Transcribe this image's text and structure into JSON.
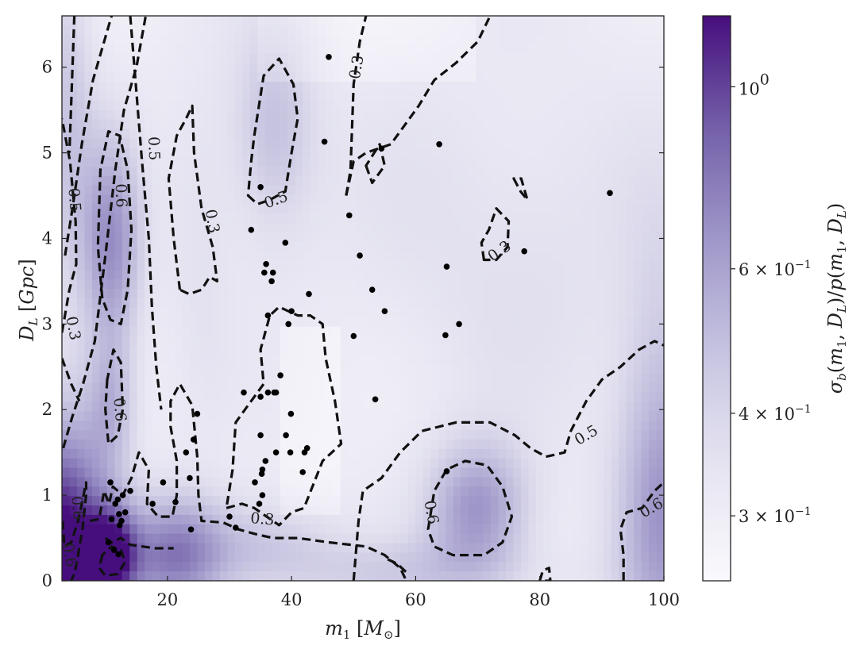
{
  "chart_data": {
    "type": "heatmap",
    "title": "",
    "xlabel": "m_1 [M_⊙]",
    "ylabel": "D_L [Gpc]",
    "colorbar_label": "σ_b(m_1, D_L)/p(m_1, D_L)",
    "xlim": [
      3,
      100
    ],
    "ylim": [
      0,
      6.6
    ],
    "xticks": [
      20,
      40,
      60,
      80,
      100
    ],
    "yticks": [
      0,
      1,
      2,
      3,
      4,
      5,
      6
    ],
    "colorbar": {
      "scale": "log",
      "range": [
        0.25,
        1.22
      ],
      "colormap": "Purples",
      "ticks": [
        {
          "value": 1.0,
          "base": "10",
          "exp": "0"
        },
        {
          "value": 0.6,
          "mant": "6 × 10",
          "exp": "−1"
        },
        {
          "value": 0.4,
          "mant": "4 × 10",
          "exp": "−1"
        },
        {
          "value": 0.3,
          "mant": "3 × 10",
          "exp": "−1"
        }
      ]
    },
    "contour_levels": [
      0.3,
      0.5,
      0.6
    ],
    "contour_labels": [
      {
        "text": "0.3",
        "x": 50.5,
        "y": 6.0,
        "angle": -80
      },
      {
        "text": "0.5",
        "x": 17.8,
        "y": 5.05,
        "angle": 88
      },
      {
        "text": "0.6",
        "x": 12.5,
        "y": 4.5,
        "angle": 88
      },
      {
        "text": "0.5",
        "x": 5.0,
        "y": 4.45,
        "angle": 85
      },
      {
        "text": "0.3",
        "x": 27.2,
        "y": 4.2,
        "angle": 80
      },
      {
        "text": "0.5",
        "x": 37.5,
        "y": 4.45,
        "angle": -20
      },
      {
        "text": "0.3",
        "x": 73.5,
        "y": 3.85,
        "angle": -35
      },
      {
        "text": "0.3",
        "x": 4.8,
        "y": 2.95,
        "angle": 80
      },
      {
        "text": "0.6",
        "x": 12.3,
        "y": 2.0,
        "angle": 85
      },
      {
        "text": "0.3",
        "x": 35.3,
        "y": 0.72,
        "angle": 5
      },
      {
        "text": "0.5",
        "x": 87.5,
        "y": 1.7,
        "angle": -30
      },
      {
        "text": "0.6",
        "x": 62.5,
        "y": 0.8,
        "angle": 80
      },
      {
        "text": "0.6",
        "x": 98.0,
        "y": 0.85,
        "angle": -30
      },
      {
        "text": "0.6",
        "x": 5.5,
        "y": 0.85,
        "angle": 85
      },
      {
        "text": "0.6",
        "x": 4.2,
        "y": 0.3,
        "angle": 80
      }
    ],
    "blobs": [
      {
        "x": 3,
        "y": 0.3,
        "sx": 5,
        "sy": 1.1,
        "amp": 0.95
      },
      {
        "x": 11,
        "y": 0.3,
        "sx": 3,
        "sy": 0.4,
        "amp": 0.7
      },
      {
        "x": 21,
        "y": 0.3,
        "sx": 6,
        "sy": 0.5,
        "amp": 0.55
      },
      {
        "x": 11,
        "y": 3.9,
        "sx": 3.5,
        "sy": 0.9,
        "amp": 0.5
      },
      {
        "x": 70,
        "y": 0.85,
        "sx": 6,
        "sy": 0.55,
        "amp": 0.48
      },
      {
        "x": 11,
        "y": 2.0,
        "sx": 3,
        "sy": 0.6,
        "amp": 0.3
      },
      {
        "x": 37,
        "y": 5.3,
        "sx": 5,
        "sy": 0.9,
        "amp": 0.3
      },
      {
        "x": 100,
        "y": 0.6,
        "sx": 6,
        "sy": 1.2,
        "amp": 0.35
      },
      {
        "x": 100,
        "y": 2.2,
        "sx": 5,
        "sy": 1.5,
        "amp": 0.2
      },
      {
        "x": 60,
        "y": 0.1,
        "sx": 15,
        "sy": 0.3,
        "amp": 0.2
      },
      {
        "x": 35,
        "y": 0.4,
        "sx": 8,
        "sy": 0.4,
        "amp": 0.25
      },
      {
        "x": 4,
        "y": 5.5,
        "sx": 3,
        "sy": 1.5,
        "amp": 0.25
      },
      {
        "x": 75,
        "y": 4.0,
        "sx": 20,
        "sy": 1.5,
        "amp": 0.12
      },
      {
        "x": 25,
        "y": 4.0,
        "sx": 4,
        "sy": 1.5,
        "amp": 0.1
      }
    ],
    "contours": [
      [
        [
          9.5,
          3.3
        ],
        [
          8.8,
          3.9
        ],
        [
          9.2,
          4.8
        ],
        [
          10.5,
          5.25
        ],
        [
          12.3,
          5.2
        ],
        [
          13.6,
          4.8
        ],
        [
          14.2,
          4.1
        ],
        [
          13.6,
          3.4
        ],
        [
          12.5,
          3.0
        ],
        [
          10.8,
          3.05
        ]
      ],
      [
        [
          3.5,
          3.8
        ],
        [
          4.8,
          4.4
        ],
        [
          6.2,
          5.1
        ],
        [
          8.0,
          5.85
        ],
        [
          11.0,
          6.6
        ]
      ],
      [
        [
          5.0,
          6.6
        ],
        [
          4.7,
          6.0
        ],
        [
          4.2,
          5.0
        ]
      ],
      [
        [
          3,
          2.9
        ],
        [
          4.2,
          3.4
        ],
        [
          5.3,
          3.7
        ],
        [
          5.2,
          4.2
        ],
        [
          4.3,
          4.9
        ],
        [
          3,
          5.4
        ]
      ],
      [
        [
          3,
          2.6
        ],
        [
          4.5,
          2.3
        ],
        [
          5.8,
          2.1
        ]
      ],
      [
        [
          3.2,
          1.55
        ],
        [
          4.6,
          1.9
        ],
        [
          6.4,
          2.3
        ],
        [
          8.3,
          2.8
        ],
        [
          10.0,
          3.8
        ],
        [
          11.6,
          4.8
        ],
        [
          13.0,
          5.5
        ],
        [
          15.0,
          6.0
        ],
        [
          16.5,
          6.6
        ]
      ],
      [
        [
          14.0,
          6.6
        ],
        [
          14.9,
          5.8
        ],
        [
          15.9,
          4.9
        ],
        [
          17.0,
          4.0
        ],
        [
          17.5,
          3.2
        ],
        [
          18.2,
          2.5
        ],
        [
          19.0,
          2.0
        ]
      ],
      [
        [
          10.3,
          2.35
        ],
        [
          10.0,
          2.0
        ],
        [
          10.5,
          1.6
        ],
        [
          12.0,
          1.7
        ],
        [
          12.8,
          2.0
        ],
        [
          12.5,
          2.55
        ],
        [
          11.3,
          2.7
        ]
      ],
      [
        [
          7.5,
          0.7
        ],
        [
          9.0,
          0.72
        ],
        [
          9.8,
          1.05
        ],
        [
          10.6,
          0.9
        ],
        [
          11.2,
          1.1
        ],
        [
          12.8,
          1.0
        ],
        [
          14.2,
          1.2
        ],
        [
          15.4,
          1.5
        ],
        [
          17.0,
          1.3
        ],
        [
          16.7,
          0.9
        ],
        [
          18.5,
          0.75
        ],
        [
          20.8,
          0.75
        ],
        [
          21.5,
          1.0
        ],
        [
          21.5,
          1.4
        ],
        [
          20.5,
          1.8
        ],
        [
          20.5,
          2.1
        ],
        [
          22.0,
          2.3
        ],
        [
          24.0,
          2.05
        ],
        [
          24.8,
          1.45
        ],
        [
          25.0,
          1.0
        ],
        [
          25.5,
          0.7
        ],
        [
          29.0,
          0.68
        ],
        [
          31.5,
          0.6
        ],
        [
          34.0,
          0.55
        ],
        [
          37.0,
          0.5
        ],
        [
          41.0,
          0.5
        ],
        [
          46.0,
          0.45
        ],
        [
          52.0,
          0.4
        ],
        [
          55.0,
          0.3
        ],
        [
          57.5,
          0.15
        ],
        [
          58.5,
          0.0
        ]
      ],
      [
        [
          3.1,
          0.7
        ],
        [
          3.4,
          0.4
        ],
        [
          4.5,
          0.45
        ],
        [
          5.6,
          0.7
        ],
        [
          6.2,
          0.9
        ],
        [
          6.9,
          1.15
        ],
        [
          6.9,
          1.0
        ],
        [
          6.3,
          0.6
        ],
        [
          5.6,
          0.3
        ],
        [
          5.1,
          0.1
        ],
        [
          4.5,
          0.0
        ]
      ],
      [
        [
          9.5,
          0.3
        ],
        [
          9.0,
          0.15
        ],
        [
          10.0,
          0.06
        ],
        [
          12.0,
          0.08
        ],
        [
          13.2,
          0.22
        ],
        [
          12.5,
          0.36
        ],
        [
          11.0,
          0.4
        ]
      ],
      [
        [
          10.0,
          0.5
        ],
        [
          11.0,
          0.45
        ],
        [
          12.5,
          0.5
        ],
        [
          14.0,
          0.42
        ],
        [
          16.0,
          0.4
        ],
        [
          18.0,
          0.38
        ],
        [
          21.0,
          0.38
        ]
      ],
      [
        [
          22.0,
          3.4
        ],
        [
          21.0,
          4.0
        ],
        [
          20.2,
          4.7
        ],
        [
          21.5,
          5.2
        ],
        [
          23.0,
          5.4
        ],
        [
          24.0,
          5.55
        ],
        [
          24.3,
          5.0
        ],
        [
          25.5,
          4.35
        ],
        [
          27.3,
          3.9
        ],
        [
          28.0,
          3.5
        ],
        [
          26.8,
          3.55
        ],
        [
          25.5,
          3.4
        ],
        [
          23.5,
          3.35
        ]
      ],
      [
        [
          33.0,
          4.5
        ],
        [
          34.5,
          4.4
        ],
        [
          36.5,
          4.45
        ],
        [
          39.0,
          4.55
        ],
        [
          40.0,
          5.0
        ],
        [
          41.0,
          5.4
        ],
        [
          40.3,
          5.8
        ],
        [
          38.0,
          6.1
        ],
        [
          35.5,
          5.9
        ],
        [
          34.0,
          5.2
        ],
        [
          33.5,
          4.9
        ]
      ],
      [
        [
          29.5,
          0.85
        ],
        [
          32.0,
          0.9
        ],
        [
          34.0,
          0.85
        ],
        [
          38.0,
          0.65
        ],
        [
          40.0,
          0.8
        ],
        [
          42.0,
          0.85
        ],
        [
          45.0,
          1.4
        ],
        [
          48.0,
          1.6
        ],
        [
          47.0,
          2.1
        ],
        [
          45.5,
          2.6
        ],
        [
          45.0,
          3.0
        ],
        [
          43.0,
          3.1
        ],
        [
          41.0,
          3.1
        ],
        [
          38.0,
          3.2
        ],
        [
          36.5,
          3.1
        ],
        [
          35.0,
          2.7
        ],
        [
          35.5,
          2.3
        ],
        [
          33.0,
          2.05
        ],
        [
          31.0,
          1.85
        ],
        [
          30.5,
          1.3
        ]
      ],
      [
        [
          48.8,
          4.5
        ],
        [
          50.0,
          4.9
        ],
        [
          52.0,
          5.0
        ],
        [
          56.0,
          5.1
        ],
        [
          60.5,
          5.55
        ],
        [
          63.0,
          5.85
        ],
        [
          66.5,
          6.05
        ],
        [
          70.0,
          6.3
        ],
        [
          72.0,
          6.6
        ]
      ],
      [
        [
          48.8,
          4.5
        ],
        [
          49.5,
          4.8
        ],
        [
          50.0,
          5.8
        ],
        [
          51.0,
          6.3
        ],
        [
          52.0,
          6.6
        ]
      ],
      [
        [
          52.0,
          4.85
        ],
        [
          53.0,
          4.65
        ],
        [
          55.0,
          4.85
        ],
        [
          54.2,
          5.1
        ]
      ],
      [
        [
          71.0,
          3.75
        ],
        [
          70.6,
          3.95
        ],
        [
          71.8,
          4.1
        ],
        [
          73.0,
          4.35
        ],
        [
          75.0,
          4.2
        ],
        [
          74.8,
          3.9
        ],
        [
          73.0,
          3.75
        ]
      ],
      [
        [
          75.8,
          4.7
        ],
        [
          76.9,
          4.55
        ],
        [
          78.0,
          4.45
        ],
        [
          77.0,
          4.7
        ]
      ],
      [
        [
          50.0,
          0.0
        ],
        [
          50.8,
          0.7
        ],
        [
          51.5,
          1.05
        ],
        [
          54.5,
          1.2
        ],
        [
          57.5,
          1.5
        ],
        [
          61.0,
          1.75
        ],
        [
          66.5,
          1.85
        ],
        [
          72.0,
          1.85
        ],
        [
          76.0,
          1.7
        ],
        [
          78.5,
          1.55
        ],
        [
          81.0,
          1.45
        ],
        [
          84.0,
          1.5
        ],
        [
          85.0,
          1.75
        ],
        [
          87.5,
          2.1
        ],
        [
          90.0,
          2.35
        ],
        [
          93.0,
          2.5
        ],
        [
          96.0,
          2.7
        ],
        [
          98.5,
          2.8
        ],
        [
          100,
          2.75
        ]
      ],
      [
        [
          62.0,
          0.6
        ],
        [
          63.0,
          1.05
        ],
        [
          65.0,
          1.3
        ],
        [
          68.0,
          1.4
        ],
        [
          71.5,
          1.35
        ],
        [
          74.0,
          1.1
        ],
        [
          75.5,
          0.75
        ],
        [
          74.0,
          0.45
        ],
        [
          71.0,
          0.3
        ],
        [
          66.0,
          0.3
        ],
        [
          63.0,
          0.4
        ]
      ],
      [
        [
          93.5,
          0.0
        ],
        [
          93.5,
          0.3
        ],
        [
          93.0,
          0.6
        ],
        [
          94.0,
          0.8
        ],
        [
          96.5,
          0.85
        ],
        [
          98.5,
          1.05
        ],
        [
          100,
          1.15
        ]
      ],
      [
        [
          80.0,
          0.0
        ],
        [
          80.5,
          0.12
        ],
        [
          81.5,
          0.15
        ],
        [
          81.7,
          0.0
        ]
      ],
      [
        [
          55.5,
          0.25
        ],
        [
          57.0,
          0.2
        ],
        [
          58.5,
          0.1
        ]
      ]
    ],
    "points": [
      [
        10.8,
        1.15
      ],
      [
        11.6,
        0.9
      ],
      [
        12.0,
        0.95
      ],
      [
        12.2,
        0.78
      ],
      [
        12.6,
        0.7
      ],
      [
        11.0,
        0.72
      ],
      [
        13.2,
        0.8
      ],
      [
        12.3,
        0.65
      ],
      [
        14.0,
        1.05
      ],
      [
        11.4,
        0.36
      ],
      [
        12.1,
        0.31
      ],
      [
        10.5,
        0.45
      ],
      [
        12.8,
        1.0
      ],
      [
        17.6,
        0.9
      ],
      [
        19.3,
        1.15
      ],
      [
        21.3,
        0.92
      ],
      [
        23.0,
        1.5
      ],
      [
        23.6,
        1.2
      ],
      [
        24.2,
        1.65
      ],
      [
        24.8,
        1.95
      ],
      [
        23.8,
        0.6
      ],
      [
        30.0,
        0.75
      ],
      [
        31.0,
        0.62
      ],
      [
        32.3,
        2.2
      ],
      [
        34.1,
        1.15
      ],
      [
        35.2,
        1.25
      ],
      [
        35.3,
        1.0
      ],
      [
        35.3,
        1.3
      ],
      [
        34.8,
        0.9
      ],
      [
        35.0,
        1.7
      ],
      [
        35.8,
        1.4
      ],
      [
        35.0,
        2.15
      ],
      [
        37.5,
        2.2
      ],
      [
        38.2,
        2.4
      ],
      [
        36.2,
        3.1
      ],
      [
        35.6,
        3.6
      ],
      [
        35.9,
        3.7
      ],
      [
        36.8,
        3.5
      ],
      [
        37.0,
        3.6
      ],
      [
        39.1,
        1.7
      ],
      [
        39.8,
        1.5
      ],
      [
        39.9,
        1.95
      ],
      [
        40.0,
        3.15
      ],
      [
        41.8,
        1.27
      ],
      [
        42.1,
        1.5
      ],
      [
        42.5,
        1.55
      ],
      [
        42.8,
        3.35
      ],
      [
        39.5,
        3.0
      ],
      [
        36.2,
        2.2
      ],
      [
        37.2,
        2.2
      ],
      [
        37.5,
        1.5
      ],
      [
        33.5,
        4.1
      ],
      [
        35.0,
        4.6
      ],
      [
        39.0,
        3.95
      ],
      [
        45.3,
        5.13
      ],
      [
        46.0,
        6.12
      ],
      [
        49.3,
        4.27
      ],
      [
        50.0,
        2.86
      ],
      [
        51.0,
        3.8
      ],
      [
        53.0,
        3.4
      ],
      [
        53.5,
        2.12
      ],
      [
        55.0,
        3.15
      ],
      [
        54.5,
        5.05
      ],
      [
        63.8,
        5.1
      ],
      [
        64.8,
        2.87
      ],
      [
        65.0,
        3.67
      ],
      [
        67.0,
        3.0
      ],
      [
        65.0,
        1.28
      ],
      [
        77.5,
        3.85
      ],
      [
        91.3,
        4.53
      ]
    ]
  }
}
